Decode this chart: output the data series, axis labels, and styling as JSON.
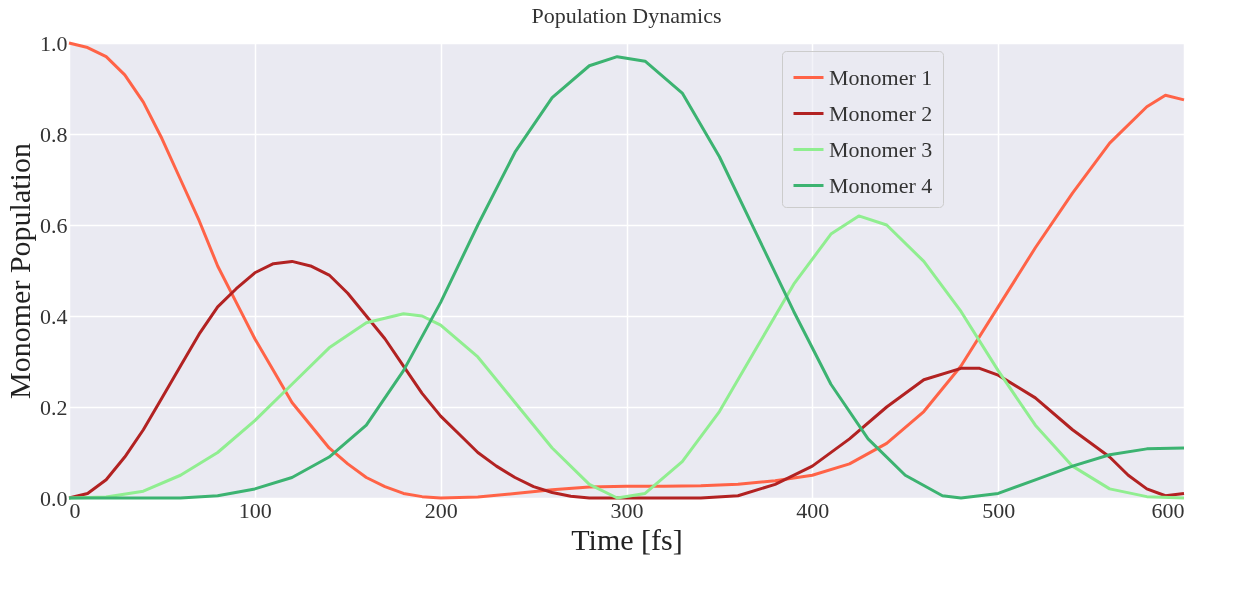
{
  "chart_data": {
    "type": "line",
    "title": "Population Dynamics",
    "xlabel": "Time [fs]",
    "ylabel": "Monomer Population",
    "xlim": [
      0,
      600
    ],
    "xticks": [
      0,
      100,
      200,
      300,
      400,
      500,
      600
    ],
    "ylim": [
      0,
      1
    ],
    "yticks": [
      {
        "value": 0,
        "label": "0.0"
      },
      {
        "value": 0.2,
        "label": "0.2"
      },
      {
        "value": 0.4,
        "label": "0.4"
      },
      {
        "value": 0.6,
        "label": "0.6"
      },
      {
        "value": 0.8,
        "label": "0.8"
      },
      {
        "value": 1,
        "label": "1.0"
      }
    ],
    "grid": true,
    "legend": "top right",
    "line_style": "solid",
    "marker": "none",
    "series": [
      {
        "name": "Monomer 1",
        "color": "#ff6347",
        "x": [
          0,
          10,
          20,
          30,
          40,
          50,
          60,
          70,
          80,
          90,
          100,
          110,
          120,
          130,
          140,
          150,
          160,
          170,
          180,
          190,
          200,
          220,
          240,
          260,
          280,
          300,
          320,
          340,
          360,
          380,
          400,
          420,
          440,
          460,
          480,
          500,
          520,
          540,
          560,
          580,
          590,
          600
        ],
        "values": [
          1.0,
          0.99,
          0.97,
          0.93,
          0.87,
          0.79,
          0.7,
          0.61,
          0.51,
          0.43,
          0.35,
          0.28,
          0.21,
          0.16,
          0.11,
          0.075,
          0.045,
          0.025,
          0.01,
          0.003,
          0,
          0.002,
          0.01,
          0.018,
          0.024,
          0.026,
          0.026,
          0.027,
          0.03,
          0.038,
          0.05,
          0.075,
          0.12,
          0.19,
          0.29,
          0.42,
          0.55,
          0.67,
          0.78,
          0.86,
          0.885,
          0.875
        ]
      },
      {
        "name": "Monomer 2",
        "color": "#b22222",
        "x": [
          0,
          10,
          20,
          30,
          40,
          50,
          60,
          70,
          80,
          90,
          100,
          110,
          120,
          130,
          140,
          150,
          160,
          170,
          180,
          190,
          200,
          210,
          220,
          230,
          240,
          250,
          260,
          270,
          280,
          300,
          340,
          360,
          380,
          400,
          420,
          440,
          460,
          480,
          490,
          500,
          520,
          540,
          560,
          570,
          580,
          590,
          600
        ],
        "values": [
          0,
          0.01,
          0.04,
          0.09,
          0.15,
          0.22,
          0.29,
          0.36,
          0.42,
          0.46,
          0.495,
          0.515,
          0.52,
          0.51,
          0.49,
          0.45,
          0.4,
          0.35,
          0.29,
          0.23,
          0.18,
          0.14,
          0.1,
          0.07,
          0.045,
          0.025,
          0.012,
          0.004,
          0,
          0,
          0,
          0.005,
          0.03,
          0.07,
          0.13,
          0.2,
          0.26,
          0.285,
          0.285,
          0.27,
          0.22,
          0.15,
          0.09,
          0.05,
          0.02,
          0.005,
          0.01
        ]
      },
      {
        "name": "Monomer 3",
        "color": "#90ee90",
        "x": [
          0,
          20,
          40,
          60,
          80,
          100,
          120,
          140,
          160,
          180,
          190,
          200,
          220,
          240,
          260,
          280,
          295,
          310,
          330,
          350,
          370,
          390,
          410,
          425,
          440,
          460,
          480,
          500,
          520,
          540,
          560,
          580,
          600
        ],
        "values": [
          0,
          0.002,
          0.015,
          0.05,
          0.1,
          0.17,
          0.25,
          0.33,
          0.385,
          0.405,
          0.4,
          0.38,
          0.31,
          0.21,
          0.11,
          0.03,
          0,
          0.01,
          0.08,
          0.19,
          0.33,
          0.47,
          0.58,
          0.62,
          0.6,
          0.52,
          0.41,
          0.28,
          0.16,
          0.07,
          0.02,
          0.003,
          0
        ]
      },
      {
        "name": "Monomer 4",
        "color": "#3cb371",
        "x": [
          0,
          60,
          80,
          100,
          120,
          140,
          160,
          180,
          200,
          220,
          240,
          260,
          280,
          295,
          310,
          330,
          350,
          370,
          390,
          410,
          430,
          450,
          470,
          480,
          500,
          520,
          540,
          560,
          580,
          600
        ],
        "values": [
          0,
          0,
          0.005,
          0.02,
          0.045,
          0.09,
          0.16,
          0.28,
          0.43,
          0.6,
          0.76,
          0.88,
          0.95,
          0.97,
          0.96,
          0.89,
          0.75,
          0.58,
          0.41,
          0.25,
          0.13,
          0.05,
          0.005,
          0,
          0.01,
          0.04,
          0.07,
          0.095,
          0.108,
          0.11
        ]
      }
    ]
  }
}
